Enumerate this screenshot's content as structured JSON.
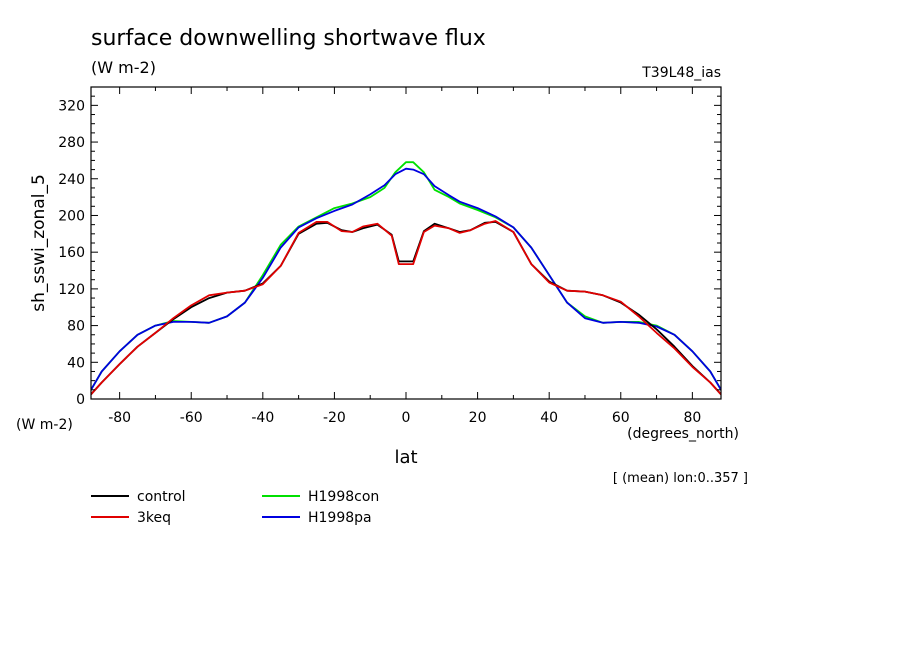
{
  "chart_data": {
    "type": "line",
    "title": "surface downwelling shortwave flux",
    "subtitle": "(W m-2)",
    "tag": "T39L48_ias",
    "xlabel": "lat",
    "xunits": "(degrees_north)",
    "ylabel": "sh_sswi_zonal_5",
    "yunits": "(W m-2)",
    "note": "[ (mean) lon:0..357 ]",
    "xlim": [
      -88,
      88
    ],
    "ylim": [
      0,
      340
    ],
    "xticks": [
      -80,
      -60,
      -40,
      -20,
      0,
      20,
      40,
      60,
      80
    ],
    "yticks": [
      0,
      40,
      80,
      120,
      160,
      200,
      240,
      280,
      320
    ],
    "grid": false,
    "legend_position": "bottom-left",
    "series": [
      {
        "name": "control",
        "color": "#000000",
        "x": [
          -88,
          -85,
          -80,
          -75,
          -70,
          -65,
          -60,
          -55,
          -50,
          -45,
          -40,
          -35,
          -30,
          -25,
          -22,
          -18,
          -15,
          -12,
          -8,
          -4,
          -2,
          0,
          2,
          5,
          8,
          12,
          15,
          18,
          22,
          25,
          30,
          35,
          40,
          45,
          50,
          55,
          60,
          65,
          70,
          75,
          80,
          85,
          88
        ],
        "y": [
          5,
          18,
          38,
          57,
          72,
          87,
          100,
          110,
          116,
          118,
          126,
          145,
          180,
          191,
          192,
          184,
          182,
          186,
          190,
          179,
          150,
          150,
          150,
          183,
          191,
          186,
          182,
          184,
          192,
          193,
          182,
          147,
          128,
          118,
          117,
          113,
          105,
          92,
          76,
          57,
          36,
          18,
          5
        ]
      },
      {
        "name": "3keq",
        "color": "#e00000",
        "x": [
          -88,
          -85,
          -80,
          -75,
          -70,
          -65,
          -60,
          -55,
          -50,
          -45,
          -40,
          -35,
          -30,
          -25,
          -22,
          -18,
          -15,
          -12,
          -8,
          -4,
          -2,
          0,
          2,
          5,
          8,
          12,
          15,
          18,
          22,
          25,
          30,
          35,
          40,
          45,
          50,
          55,
          60,
          65,
          70,
          75,
          80,
          85,
          88
        ],
        "y": [
          5,
          18,
          38,
          57,
          72,
          88,
          102,
          113,
          116,
          118,
          125,
          145,
          181,
          193,
          193,
          183,
          182,
          188,
          191,
          178,
          147,
          147,
          147,
          182,
          189,
          186,
          181,
          184,
          191,
          194,
          182,
          147,
          127,
          118,
          117,
          113,
          106,
          90,
          72,
          55,
          35,
          18,
          5
        ]
      },
      {
        "name": "H1998con",
        "color": "#00e000",
        "x": [
          -88,
          -85,
          -80,
          -75,
          -70,
          -65,
          -60,
          -55,
          -50,
          -45,
          -40,
          -35,
          -30,
          -25,
          -20,
          -15,
          -10,
          -6,
          -3,
          0,
          2,
          5,
          8,
          12,
          15,
          20,
          25,
          30,
          35,
          40,
          45,
          50,
          55,
          60,
          65,
          70,
          75,
          80,
          85,
          88
        ],
        "y": [
          10,
          30,
          52,
          70,
          80,
          85,
          84,
          83,
          90,
          105,
          135,
          168,
          188,
          198,
          208,
          213,
          220,
          230,
          247,
          258,
          258,
          247,
          228,
          220,
          213,
          206,
          198,
          187,
          165,
          135,
          105,
          90,
          83,
          84,
          84,
          80,
          70,
          52,
          30,
          10
        ]
      },
      {
        "name": "H1998pa",
        "color": "#0000e0",
        "x": [
          -88,
          -85,
          -80,
          -75,
          -70,
          -65,
          -60,
          -55,
          -50,
          -45,
          -40,
          -35,
          -30,
          -25,
          -20,
          -15,
          -10,
          -6,
          -3,
          0,
          2,
          5,
          8,
          12,
          15,
          20,
          25,
          30,
          35,
          40,
          45,
          50,
          55,
          60,
          65,
          70,
          75,
          80,
          85,
          88
        ],
        "y": [
          10,
          30,
          52,
          70,
          80,
          84,
          84,
          83,
          90,
          105,
          132,
          165,
          187,
          197,
          205,
          212,
          223,
          233,
          245,
          251,
          250,
          245,
          232,
          222,
          215,
          208,
          199,
          187,
          165,
          135,
          105,
          88,
          83,
          84,
          83,
          79,
          70,
          52,
          30,
          10
        ]
      }
    ]
  }
}
